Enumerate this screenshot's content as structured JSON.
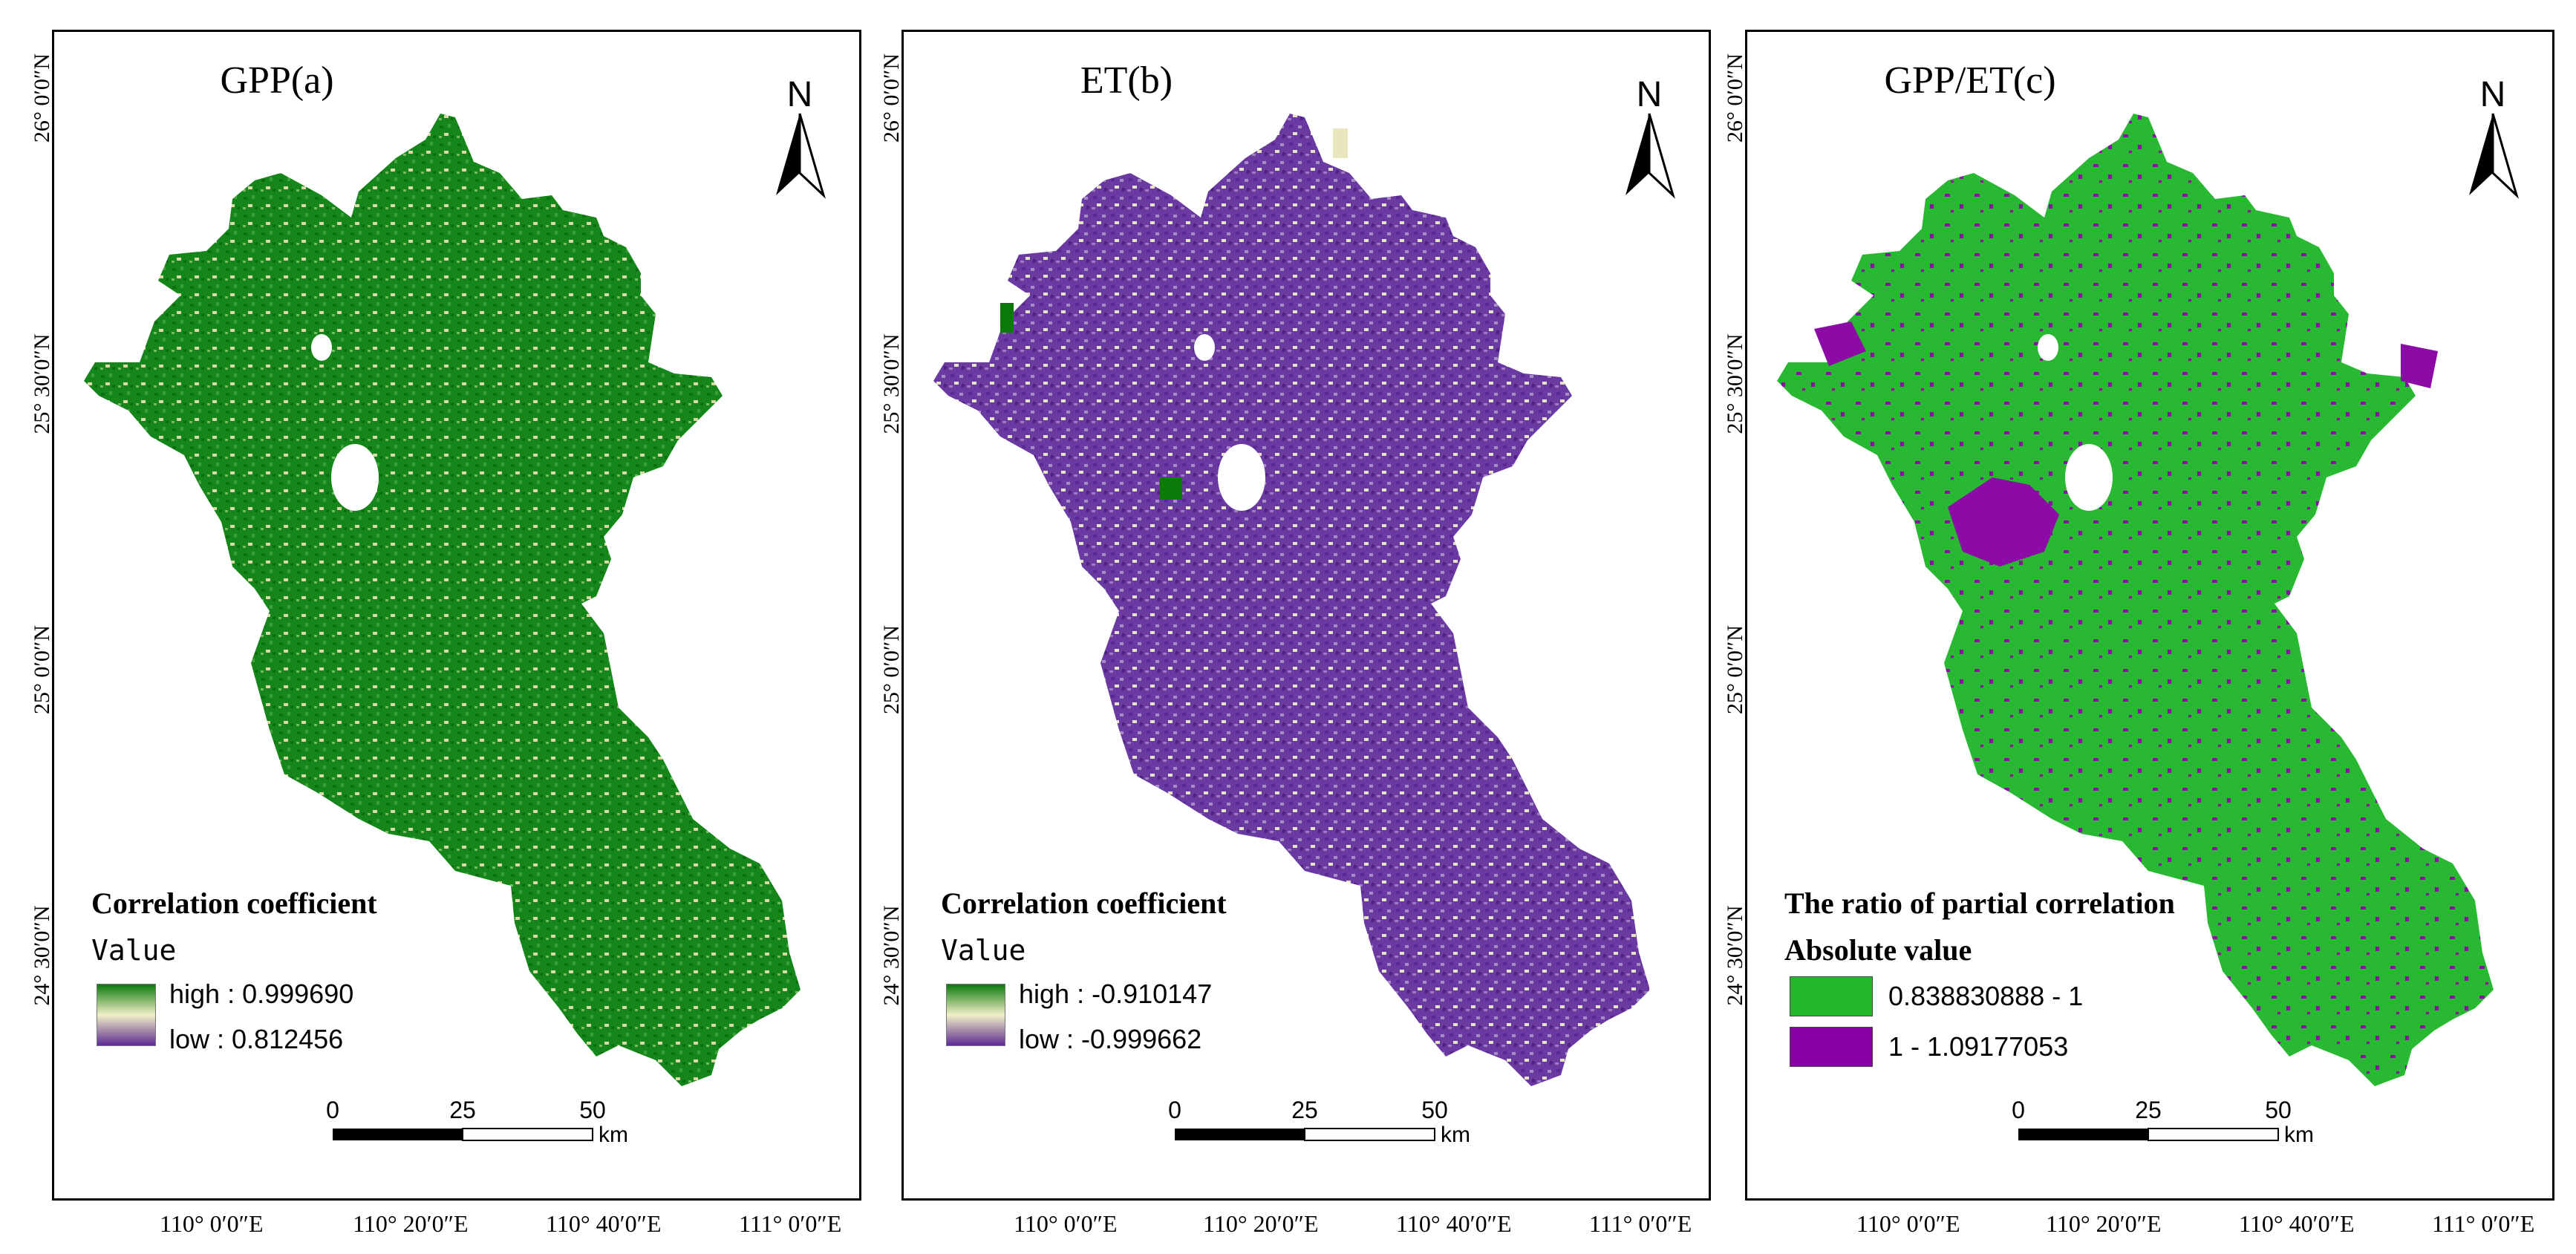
{
  "panels": [
    {
      "id": "a",
      "title": "GPP(a)",
      "north_label": "N",
      "legend": {
        "title": "Correlation coefficient",
        "subtitle": "Value",
        "high_label": "high : ",
        "high_value": "0.999690",
        "low_label": "low : ",
        "low_value": "0.812456",
        "colors": {
          "high": "#0b7a0b",
          "mid": "#f2efc7",
          "low": "#5b2c91"
        }
      },
      "scale": {
        "ticks": [
          "0",
          "25",
          "50"
        ],
        "unit": "km"
      }
    },
    {
      "id": "b",
      "title": "ET(b)",
      "north_label": "N",
      "legend": {
        "title": "Correlation coefficient",
        "subtitle": "Value",
        "high_label": "high : ",
        "high_value": "-0.910147",
        "low_label": "low : ",
        "low_value": "-0.999662",
        "colors": {
          "high": "#0b7a0b",
          "mid": "#f2efc7",
          "low": "#5b2c91"
        }
      },
      "scale": {
        "ticks": [
          "0",
          "25",
          "50"
        ],
        "unit": "km"
      }
    },
    {
      "id": "c",
      "title": "GPP/ET(c)",
      "north_label": "N",
      "legend": {
        "title": "The ratio of partial correlation",
        "subtitle": "Absolute value",
        "class1": "0.838830888 - 1",
        "class2": "1 - 1.09177053",
        "colors": {
          "class1": "#22b82e",
          "class2": "#8a00a8"
        }
      },
      "scale": {
        "ticks": [
          "0",
          "25",
          "50"
        ],
        "unit": "km"
      }
    }
  ],
  "lat_labels": [
    "26° 0′0″N",
    "25° 30′0″N",
    "25° 0′0″N",
    "24° 30′0″N"
  ],
  "lon_labels": [
    "110° 0′0″E",
    "110° 20′0″E",
    "110° 40′0″E",
    "111° 0′0″E"
  ],
  "map_colors": {
    "gpp_base": "#15861a",
    "et_base": "#6a3aa2",
    "ratio_base": "#29b832",
    "ratio_patch": "#8c0aa6",
    "light": "#e9e6bf"
  }
}
